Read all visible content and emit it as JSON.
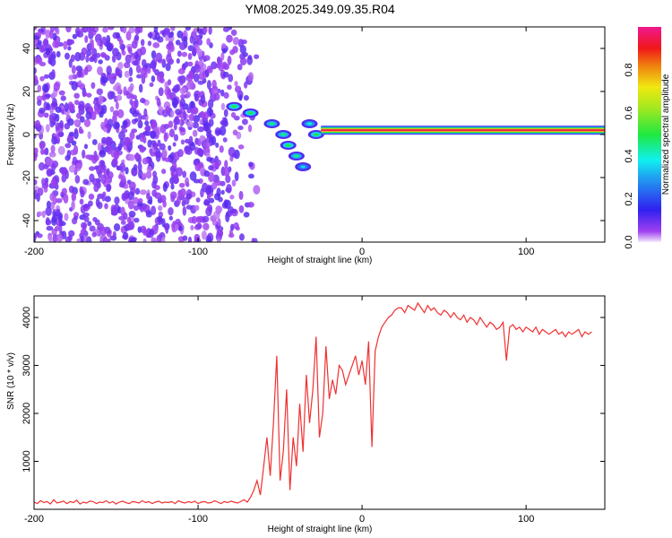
{
  "chart_data": [
    {
      "type": "heatmap",
      "title": "YM08.2025.349.09.35.R04",
      "xlabel": "Height of straight line (km)",
      "ylabel": "Frequency (Hz)",
      "xlim": [
        -200,
        148
      ],
      "ylim": [
        -50,
        50
      ],
      "xticks": [
        "-200",
        "-100",
        "0",
        "100"
      ],
      "xtick_values": [
        -200,
        -100,
        0,
        100
      ],
      "yticks": [
        "-40",
        "-20",
        "0",
        "20",
        "40"
      ],
      "ytick_values": [
        -40,
        -20,
        0,
        20,
        40
      ],
      "colorbar": {
        "label": "Normalized spectral amplitude",
        "ticks": [
          "0.0",
          "0.2",
          "0.4",
          "0.6",
          "0.8"
        ],
        "tick_values": [
          0,
          0.2,
          0.4,
          0.6,
          0.8
        ],
        "range": [
          0,
          1
        ]
      },
      "noise_region": {
        "x_range": [
          -200,
          -65
        ],
        "freq_range": [
          -50,
          50
        ],
        "amplitude": 0.1
      },
      "main_ridge": {
        "x_range": [
          -25,
          148
        ],
        "freq": 2,
        "amplitude": 0.95
      },
      "diagonal_ridge": [
        {
          "x": -78,
          "freq": 13,
          "amp": 0.5
        },
        {
          "x": -68,
          "freq": 10,
          "amp": 0.5
        },
        {
          "x": -55,
          "freq": 5,
          "amp": 0.45
        },
        {
          "x": -48,
          "freq": 0,
          "amp": 0.45
        },
        {
          "x": -45,
          "freq": -5,
          "amp": 0.5
        },
        {
          "x": -40,
          "freq": -10,
          "amp": 0.45
        },
        {
          "x": -36,
          "freq": -15,
          "amp": 0.35
        },
        {
          "x": -32,
          "freq": 5,
          "amp": 0.4
        },
        {
          "x": -28,
          "freq": 0,
          "amp": 0.5
        }
      ]
    },
    {
      "type": "line",
      "xlabel": "Height of straight line (km)",
      "ylabel": "SNR (10 * v/v)",
      "xlim": [
        -200,
        148
      ],
      "ylim": [
        0,
        4450
      ],
      "xticks": [
        "-200",
        "-100",
        "0",
        "100"
      ],
      "xtick_values": [
        -200,
        -100,
        0,
        100
      ],
      "yticks": [
        "1000",
        "2000",
        "3000",
        "4000"
      ],
      "ytick_values": [
        1000,
        2000,
        3000,
        4000
      ],
      "color": "#f03030",
      "x_start": -200,
      "x_step": 2,
      "values": [
        150,
        120,
        180,
        140,
        160,
        110,
        200,
        130,
        150,
        170,
        120,
        160,
        140,
        190,
        110,
        150,
        130,
        170,
        160,
        120,
        150,
        140,
        180,
        130,
        160,
        110,
        150,
        170,
        140,
        120,
        160,
        150,
        130,
        180,
        140,
        160,
        120,
        150,
        170,
        130,
        150,
        140,
        160,
        120,
        180,
        150,
        130,
        160,
        140,
        170,
        120,
        150,
        160,
        130,
        140,
        180,
        150,
        120,
        160,
        140,
        170,
        150,
        130,
        160,
        200,
        150,
        250,
        400,
        600,
        300,
        900,
        1500,
        700,
        1800,
        3200,
        600,
        1200,
        2500,
        400,
        1500,
        900,
        2200,
        1200,
        2800,
        1800,
        2500,
        3600,
        1500,
        2000,
        3400,
        2300,
        2700,
        2400,
        3000,
        2900,
        2600,
        2800,
        3000,
        3200,
        2800,
        3100,
        2600,
        3500,
        1300,
        3300,
        3600,
        3800,
        3900,
        4000,
        4050,
        4150,
        4200,
        4200,
        4100,
        4250,
        4200,
        4150,
        4300,
        4200,
        4100,
        4250,
        4150,
        4200,
        4100,
        4050,
        4150,
        4100,
        4000,
        4100,
        4000,
        3950,
        4050,
        3900,
        4000,
        3950,
        3850,
        4000,
        3900,
        3800,
        3900,
        3850,
        3750,
        3800,
        3900,
        3100,
        3800,
        3850,
        3750,
        3800,
        3700,
        3800,
        3750,
        3700,
        3800,
        3650,
        3750,
        3700,
        3650,
        3700,
        3750,
        3650,
        3700,
        3600,
        3700,
        3650,
        3700,
        3750,
        3600,
        3700,
        3650,
        3700
      ]
    }
  ]
}
